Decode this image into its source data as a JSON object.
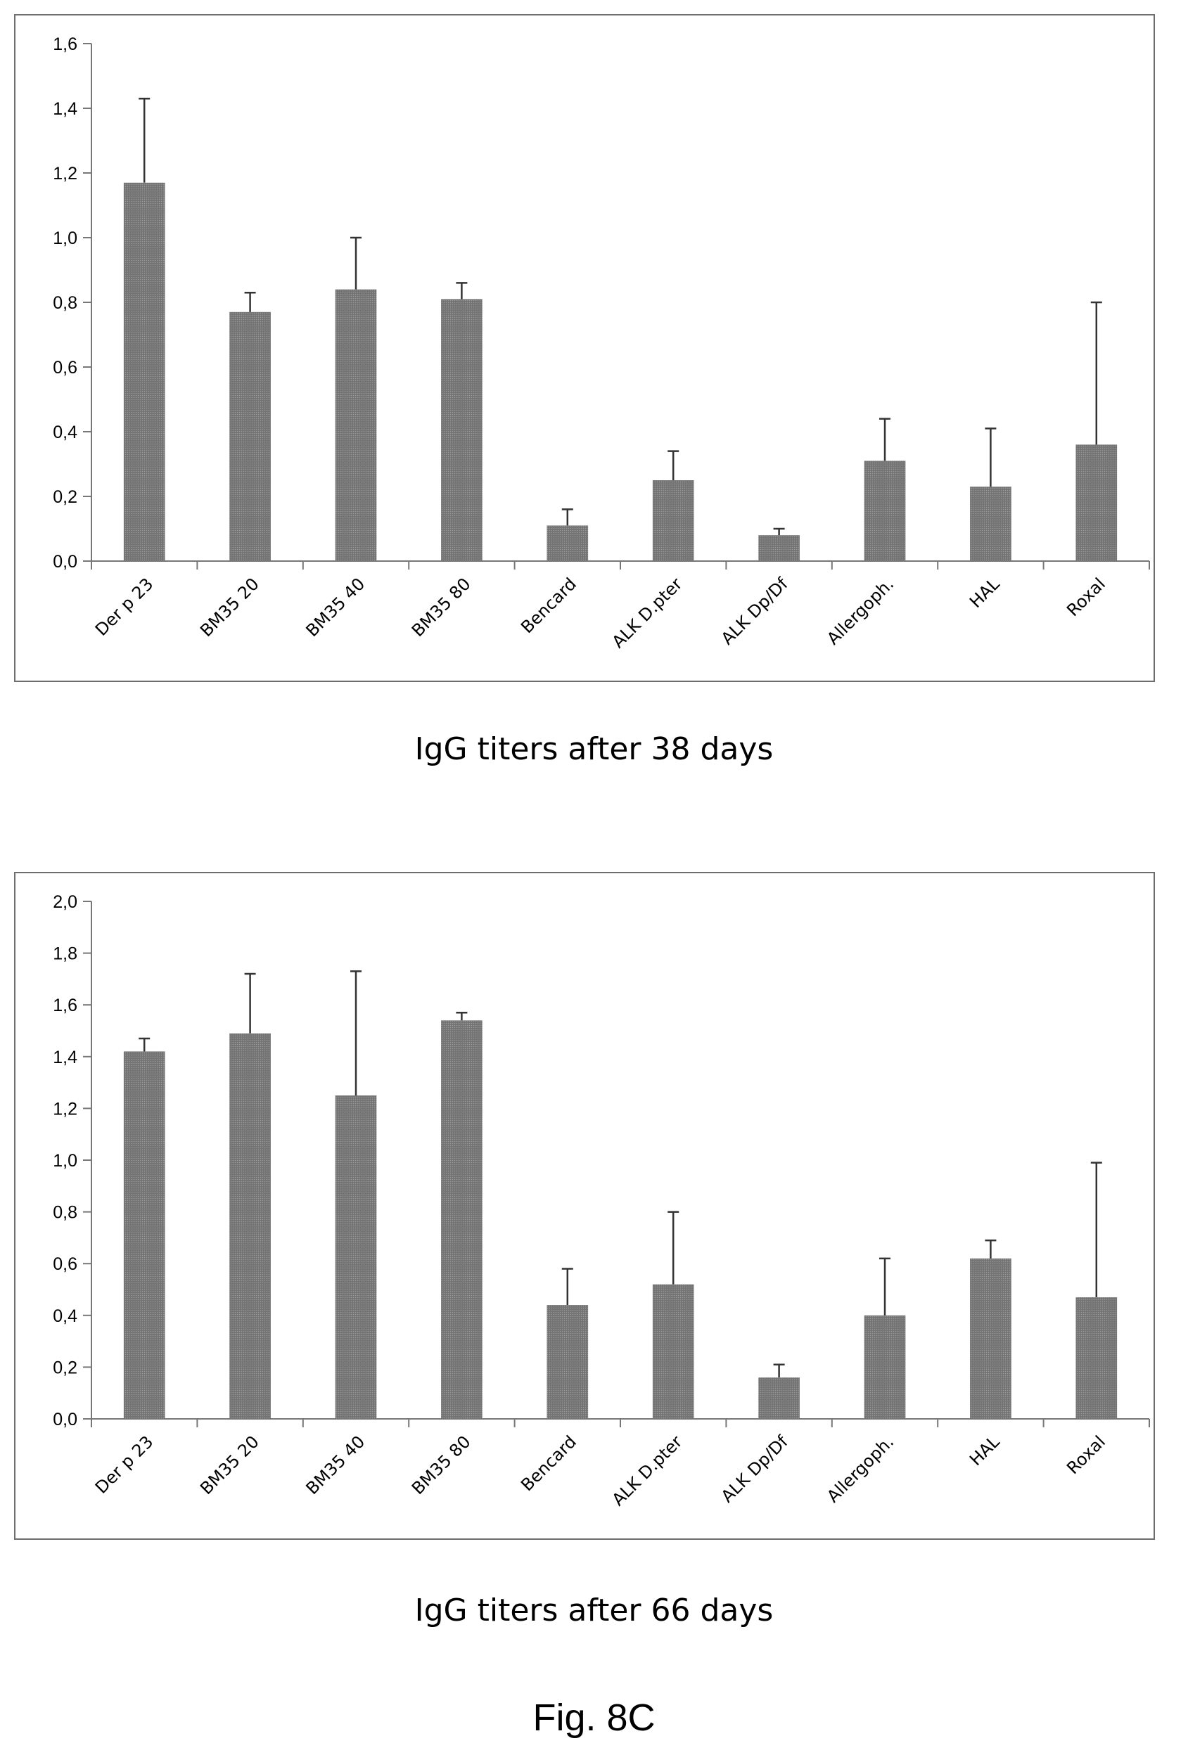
{
  "figure": {
    "label": "Fig. 8C"
  },
  "chart_data": [
    {
      "type": "bar",
      "title": "IgG titers after 38 days",
      "xlabel": "",
      "ylabel": "",
      "categories": [
        "Der p 23",
        "BM35 20",
        "BM35 40",
        "BM35 80",
        "Bencard",
        "ALK D.pter",
        "ALK Dp/Df",
        "Allergoph.",
        "HAL",
        "Roxal"
      ],
      "values": [
        1.17,
        0.77,
        0.84,
        0.81,
        0.11,
        0.25,
        0.08,
        0.31,
        0.23,
        0.36
      ],
      "error_upper": [
        1.43,
        0.83,
        1.0,
        0.86,
        0.16,
        0.34,
        0.1,
        0.44,
        0.41,
        0.8
      ],
      "ylim": [
        0,
        1.6
      ],
      "yticks": [
        "0,0",
        "0,2",
        "0,4",
        "0,6",
        "0,8",
        "1,0",
        "1,2",
        "1,4",
        "1,6"
      ],
      "grid": false,
      "legend": "none",
      "bar_color": "#7a7a7a"
    },
    {
      "type": "bar",
      "title": "IgG titers after 66 days",
      "xlabel": "",
      "ylabel": "",
      "categories": [
        "Der p 23",
        "BM35 20",
        "BM35 40",
        "BM35 80",
        "Bencard",
        "ALK D.pter",
        "ALK Dp/Df",
        "Allergoph.",
        "HAL",
        "Roxal"
      ],
      "values": [
        1.42,
        1.49,
        1.25,
        1.54,
        0.44,
        0.52,
        0.16,
        0.4,
        0.62,
        0.47
      ],
      "error_upper": [
        1.47,
        1.72,
        1.73,
        1.57,
        0.58,
        0.8,
        0.21,
        0.62,
        0.69,
        0.99
      ],
      "ylim": [
        0,
        2.0
      ],
      "yticks": [
        "0,0",
        "0,2",
        "0,4",
        "0,6",
        "0,8",
        "1,0",
        "1,2",
        "1,4",
        "1,6",
        "1,8",
        "2,0"
      ],
      "grid": false,
      "legend": "none",
      "bar_color": "#7a7a7a"
    }
  ]
}
